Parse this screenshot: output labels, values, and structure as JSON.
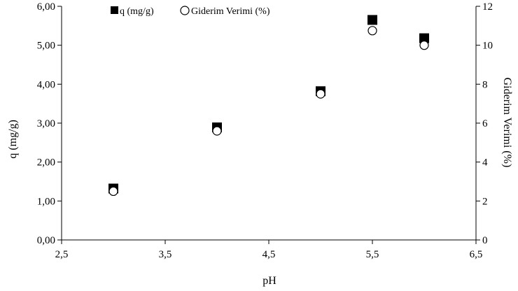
{
  "chart_data": {
    "type": "scatter",
    "title": "",
    "xlabel": "pH",
    "ylabel_left": "q (mg/g)",
    "ylabel_right": "Giderim Verimi (%)",
    "xlim": [
      2.5,
      6.5
    ],
    "ylim_left": [
      0,
      6
    ],
    "ylim_right": [
      0,
      12
    ],
    "x_ticks": [
      2.5,
      3.5,
      4.5,
      5.5,
      6.5
    ],
    "x_tick_labels": [
      "2,5",
      "3,5",
      "4,5",
      "5,5",
      "6,5"
    ],
    "y_left_ticks": [
      0,
      1,
      2,
      3,
      4,
      5,
      6
    ],
    "y_left_tick_labels": [
      "0,00",
      "1,00",
      "2,00",
      "3,00",
      "4,00",
      "5,00",
      "6,00"
    ],
    "y_right_ticks": [
      0,
      2,
      4,
      6,
      8,
      10,
      12
    ],
    "y_right_tick_labels": [
      "0",
      "2",
      "4",
      "6",
      "8",
      "10",
      "12"
    ],
    "grid": false,
    "legend_position": "top",
    "series": [
      {
        "name": "q (mg/g)",
        "axis": "left",
        "marker": "filled-square",
        "color": "#000000",
        "x": [
          3,
          4,
          5,
          5.5,
          6
        ],
        "y": [
          1.32,
          2.89,
          3.82,
          5.65,
          5.18
        ]
      },
      {
        "name": "Giderim Verimi (%)",
        "axis": "right",
        "marker": "open-circle",
        "color": "#000000",
        "x": [
          3,
          4,
          5,
          5.5,
          6
        ],
        "y": [
          2.5,
          5.6,
          7.5,
          10.75,
          10.0
        ]
      }
    ]
  }
}
